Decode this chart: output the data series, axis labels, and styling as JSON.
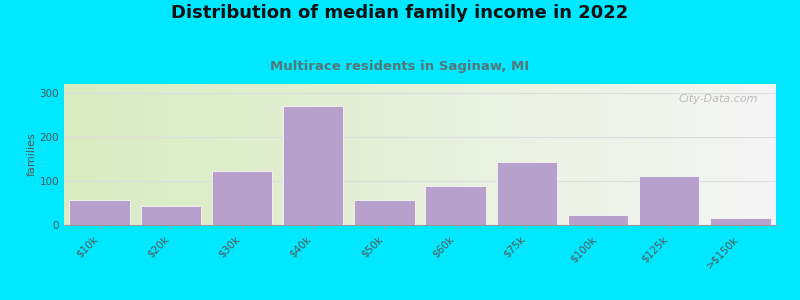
{
  "title": "Distribution of median family income in 2022",
  "subtitle": "Multirace residents in Saginaw, MI",
  "ylabel": "families",
  "categories": [
    "$10k",
    "$20k",
    "$30k",
    "$40k",
    "$50k",
    "$60k",
    "$75k",
    "$100k",
    "$125k",
    ">$150k"
  ],
  "values": [
    57,
    42,
    122,
    270,
    57,
    88,
    142,
    22,
    112,
    15
  ],
  "bar_color": "#b8a0cc",
  "bar_edgecolor": "white",
  "ylim": [
    0,
    320
  ],
  "yticks": [
    0,
    100,
    200,
    300
  ],
  "background_outer": "#00e8ff",
  "bg_left_color": "#d8ecc0",
  "bg_right_color": "#f5f5f5",
  "grid_color": "#dddddd",
  "title_fontsize": 13,
  "subtitle_fontsize": 9.5,
  "subtitle_color": "#557777",
  "watermark": "City-Data.com",
  "ylabel_fontsize": 8,
  "tick_fontsize": 7.5,
  "tick_color": "#555555"
}
